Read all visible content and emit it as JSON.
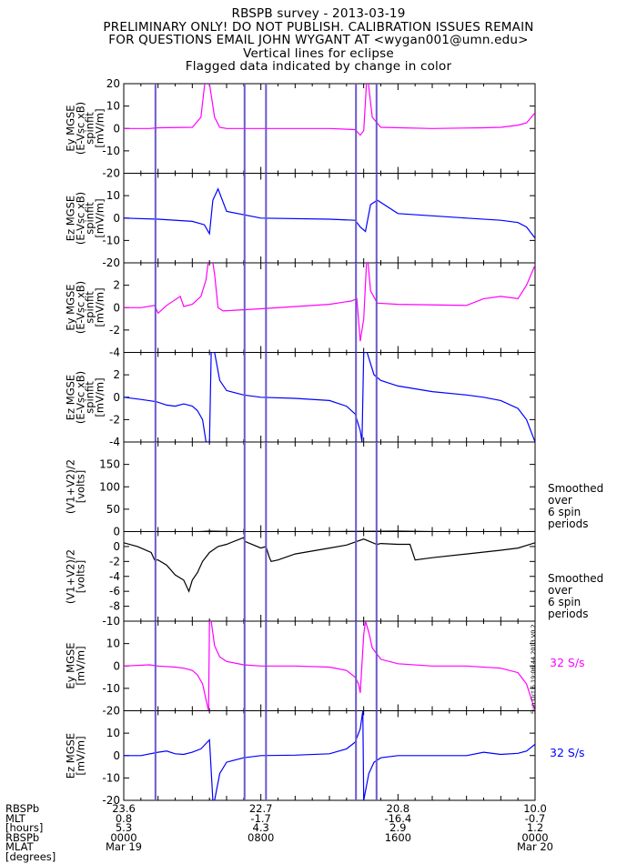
{
  "header": {
    "title": "RBSPB survey - 2013-03-19",
    "line2": "PRELIMINARY ONLY! DO NOT PUBLISH. CALIBRATION ISSUES REMAIN",
    "line3": "FOR QUESTIONS EMAIL JOHN WYGANT AT <wygan001@umn.edu>",
    "line4": "Vertical lines for eclipse",
    "line5": "Flagged data indicated by change in color"
  },
  "colors": {
    "magenta": "#ff00ff",
    "blue": "#0000ff",
    "black": "#000000",
    "eclipse": "#6a5acd"
  },
  "eclipse_lines_hours": [
    1.85,
    7.05,
    8.3,
    13.55,
    14.75
  ],
  "footer": {
    "row_labels": [
      "RBSPb",
      "MLT",
      "[hours]",
      "RBSPb",
      "MLAT",
      "[degrees]"
    ],
    "ticks": [
      {
        "hours": 0,
        "values": [
          "23.6",
          "0.8",
          "5.3",
          "0000",
          "Mar 19"
        ]
      },
      {
        "hours": 8,
        "values": [
          "22.7",
          "-1.7",
          "4.3",
          "0800",
          ""
        ]
      },
      {
        "hours": 16,
        "values": [
          "20.8",
          "-16.4",
          "2.9",
          "1600",
          ""
        ]
      },
      {
        "hours": 24,
        "values": [
          "10.0",
          "-0.7",
          "1.2",
          "0000",
          "Mar 20"
        ]
      }
    ]
  },
  "stamp": "Sun Oct  6 19:06:44 2013 V0.2",
  "chart_data": [
    {
      "type": "line",
      "label": [
        "Ey MGSE",
        "(E-Vsc xB)",
        "spinfit",
        "[mV/m]"
      ],
      "ylim": [
        -20,
        20
      ],
      "ticks": [
        -20,
        -10,
        0,
        10,
        20
      ],
      "color": "magenta",
      "x": [
        0,
        1.5,
        2,
        4,
        4.5,
        4.8,
        5.0,
        5.3,
        5.6,
        6,
        8,
        12,
        13.5,
        13.8,
        14.0,
        14.2,
        14.5,
        15,
        18,
        21,
        22,
        23,
        23.5,
        24
      ],
      "values": [
        0,
        0,
        0.3,
        0.5,
        5,
        25,
        20,
        5,
        0.5,
        0,
        0,
        0,
        -0.5,
        -3,
        -1,
        25,
        5,
        0.5,
        0,
        0.3,
        0.5,
        1.5,
        2.5,
        7
      ]
    },
    {
      "type": "line",
      "label": [
        "Ez MGSE",
        "(E-Vsc xB)",
        "spinfit",
        "[mV/m]"
      ],
      "ylim": [
        -20,
        20
      ],
      "ticks": [
        -20,
        -10,
        0,
        10,
        20
      ],
      "color": "blue",
      "x": [
        0,
        2,
        4,
        4.7,
        5.0,
        5.2,
        5.5,
        6,
        8,
        12,
        13.5,
        13.8,
        14.1,
        14.4,
        14.8,
        16,
        20,
        22,
        23,
        23.5,
        24
      ],
      "values": [
        0,
        -0.5,
        -1.5,
        -3,
        -7,
        8,
        13,
        3,
        0,
        -0.5,
        -1,
        -4,
        -6,
        6,
        8,
        2,
        0,
        -1,
        -2,
        -4,
        -9
      ]
    },
    {
      "type": "line",
      "label": [
        "Ey MGSE",
        "(E-Vsc xB)",
        "spinfit",
        "[mV/m]"
      ],
      "ylim": [
        -4,
        4
      ],
      "ticks": [
        -4,
        -2,
        0,
        2,
        4
      ],
      "color": "magenta",
      "x": [
        0,
        1,
        1.8,
        2,
        2.5,
        3.3,
        3.5,
        4,
        4.5,
        4.8,
        5.0,
        5.1,
        5.3,
        5.5,
        5.8,
        8,
        12,
        13.3,
        13.6,
        13.8,
        14.0,
        14.2,
        14.4,
        14.8,
        16,
        20,
        21,
        22,
        23,
        23.5,
        24
      ],
      "values": [
        0,
        0,
        0.2,
        -0.5,
        0.2,
        1.0,
        0.1,
        0.3,
        1.0,
        2.5,
        5,
        5,
        3,
        0,
        -0.3,
        -0.1,
        0.3,
        0.6,
        0.8,
        -3,
        -1,
        5,
        1.5,
        0.4,
        0.3,
        0.2,
        0.8,
        1.0,
        0.8,
        2,
        3.8
      ]
    },
    {
      "type": "line",
      "label": [
        "Ez MGSE",
        "(E-Vsc xB)",
        "spinfit",
        "[mV/m]"
      ],
      "ylim": [
        -4,
        4
      ],
      "ticks": [
        -4,
        -2,
        0,
        2,
        4
      ],
      "color": "blue",
      "x": [
        0,
        1,
        1.9,
        2.5,
        3,
        3.5,
        4,
        4.3,
        4.6,
        4.8,
        5.0,
        5.1,
        5.3,
        5.6,
        6,
        7,
        8,
        10,
        12,
        13,
        13.5,
        13.8,
        13.9,
        14.0,
        14.2,
        14.6,
        15,
        16,
        18,
        20,
        21,
        22,
        23,
        23.5,
        24
      ],
      "values": [
        0,
        -0.2,
        -0.4,
        -0.7,
        -0.8,
        -0.6,
        -0.8,
        -1.2,
        -2.0,
        -4,
        -4,
        4,
        4,
        1.5,
        0.6,
        0.2,
        0,
        -0.1,
        -0.3,
        -0.8,
        -1.5,
        -3,
        -4,
        4,
        4,
        2,
        1.5,
        1.0,
        0.5,
        0.2,
        0,
        -0.3,
        -1,
        -2,
        -4
      ]
    },
    {
      "type": "line",
      "label": [
        "(V1+V2)/2",
        "[volts]"
      ],
      "ylim": [
        0,
        200
      ],
      "ticks": [
        0,
        50,
        100,
        150,
        200
      ],
      "color": "black",
      "x": [
        0,
        2,
        3,
        4,
        5,
        8,
        12,
        16,
        20,
        24
      ],
      "values": [
        -2,
        -2,
        -6,
        -1,
        1,
        -1,
        0,
        1,
        -1,
        0
      ],
      "note": [
        "Smoothed",
        "over",
        "6 spin",
        "periods"
      ]
    },
    {
      "type": "line",
      "label": [
        "(V1+V2)/2",
        "[volts]"
      ],
      "ylim": [
        -10,
        2
      ],
      "ticks": [
        -10,
        -8,
        -6,
        -4,
        -2,
        0,
        2
      ],
      "color": "black",
      "x": [
        0,
        0.8,
        1.6,
        1.8,
        2,
        2.5,
        3,
        3.5,
        3.8,
        4,
        4.3,
        4.6,
        5,
        5.5,
        6,
        7,
        7.05,
        8,
        8.3,
        8.5,
        8.6,
        9,
        10,
        12,
        13,
        14,
        14.75,
        14.8,
        15,
        16,
        16.7,
        17,
        18,
        20,
        22,
        23,
        24
      ],
      "values": [
        0.5,
        0,
        -0.8,
        -1.8,
        -1.8,
        -2.5,
        -3.8,
        -4.5,
        -6,
        -4.5,
        -3.5,
        -2,
        -0.8,
        0,
        0.3,
        1.2,
        0.7,
        -0.2,
        0,
        -1.5,
        -2,
        -1.8,
        -1,
        -0.2,
        0.2,
        1.0,
        0.3,
        0.3,
        0.4,
        0.3,
        0.3,
        -1.8,
        -1.5,
        -1,
        -0.5,
        -0.2,
        0.5
      ],
      "note": [
        "Smoothed",
        "over",
        "6 spin",
        "periods"
      ]
    },
    {
      "type": "line",
      "label": [
        "Ey MGSE",
        "[mV/m]"
      ],
      "ylim": [
        -20,
        20
      ],
      "ticks": [
        -20,
        -10,
        0,
        10,
        20
      ],
      "color": "magenta",
      "x": [
        0,
        1.5,
        2,
        3,
        3.5,
        4,
        4.3,
        4.6,
        4.8,
        4.95,
        5.0,
        5.1,
        5.3,
        5.6,
        6,
        7,
        8,
        10,
        12,
        13,
        13.5,
        13.7,
        13.8,
        14.0,
        14.1,
        14.3,
        14.5,
        15,
        16,
        18,
        20,
        22,
        23,
        23.5,
        24
      ],
      "values": [
        0,
        0.5,
        0,
        -0.5,
        -1,
        -2,
        -4,
        -8,
        -15,
        -20,
        20,
        20,
        9,
        4,
        2,
        0.5,
        0,
        0,
        -0.5,
        -2,
        -5,
        -8,
        -12,
        14,
        20,
        15,
        8,
        3,
        1,
        0,
        0,
        -1,
        -3,
        -8,
        -20
      ],
      "rate": "32 S/s"
    },
    {
      "type": "line",
      "label": [
        "Ez MGSE",
        "[mV/m]"
      ],
      "ylim": [
        -20,
        20
      ],
      "ticks": [
        -20,
        -10,
        0,
        10,
        20
      ],
      "color": "blue",
      "x": [
        0,
        1,
        2,
        2.5,
        3,
        3.5,
        4,
        4.5,
        5,
        5.2,
        5.3,
        5.6,
        6,
        7,
        8,
        10,
        12,
        13,
        13.5,
        13.8,
        13.95,
        14.0,
        14.3,
        14.6,
        15,
        16,
        18,
        20,
        21,
        22,
        23,
        23.5,
        24
      ],
      "values": [
        0,
        0,
        1.5,
        2,
        0.8,
        0.5,
        1.5,
        3,
        7,
        -20,
        -20,
        -8,
        -3,
        -1,
        0,
        0.2,
        0.8,
        3,
        6,
        12,
        20,
        -20,
        -8,
        -3,
        -1,
        0,
        0,
        0,
        1.5,
        0.5,
        1,
        2,
        5
      ],
      "rate": "32 S/s"
    }
  ]
}
